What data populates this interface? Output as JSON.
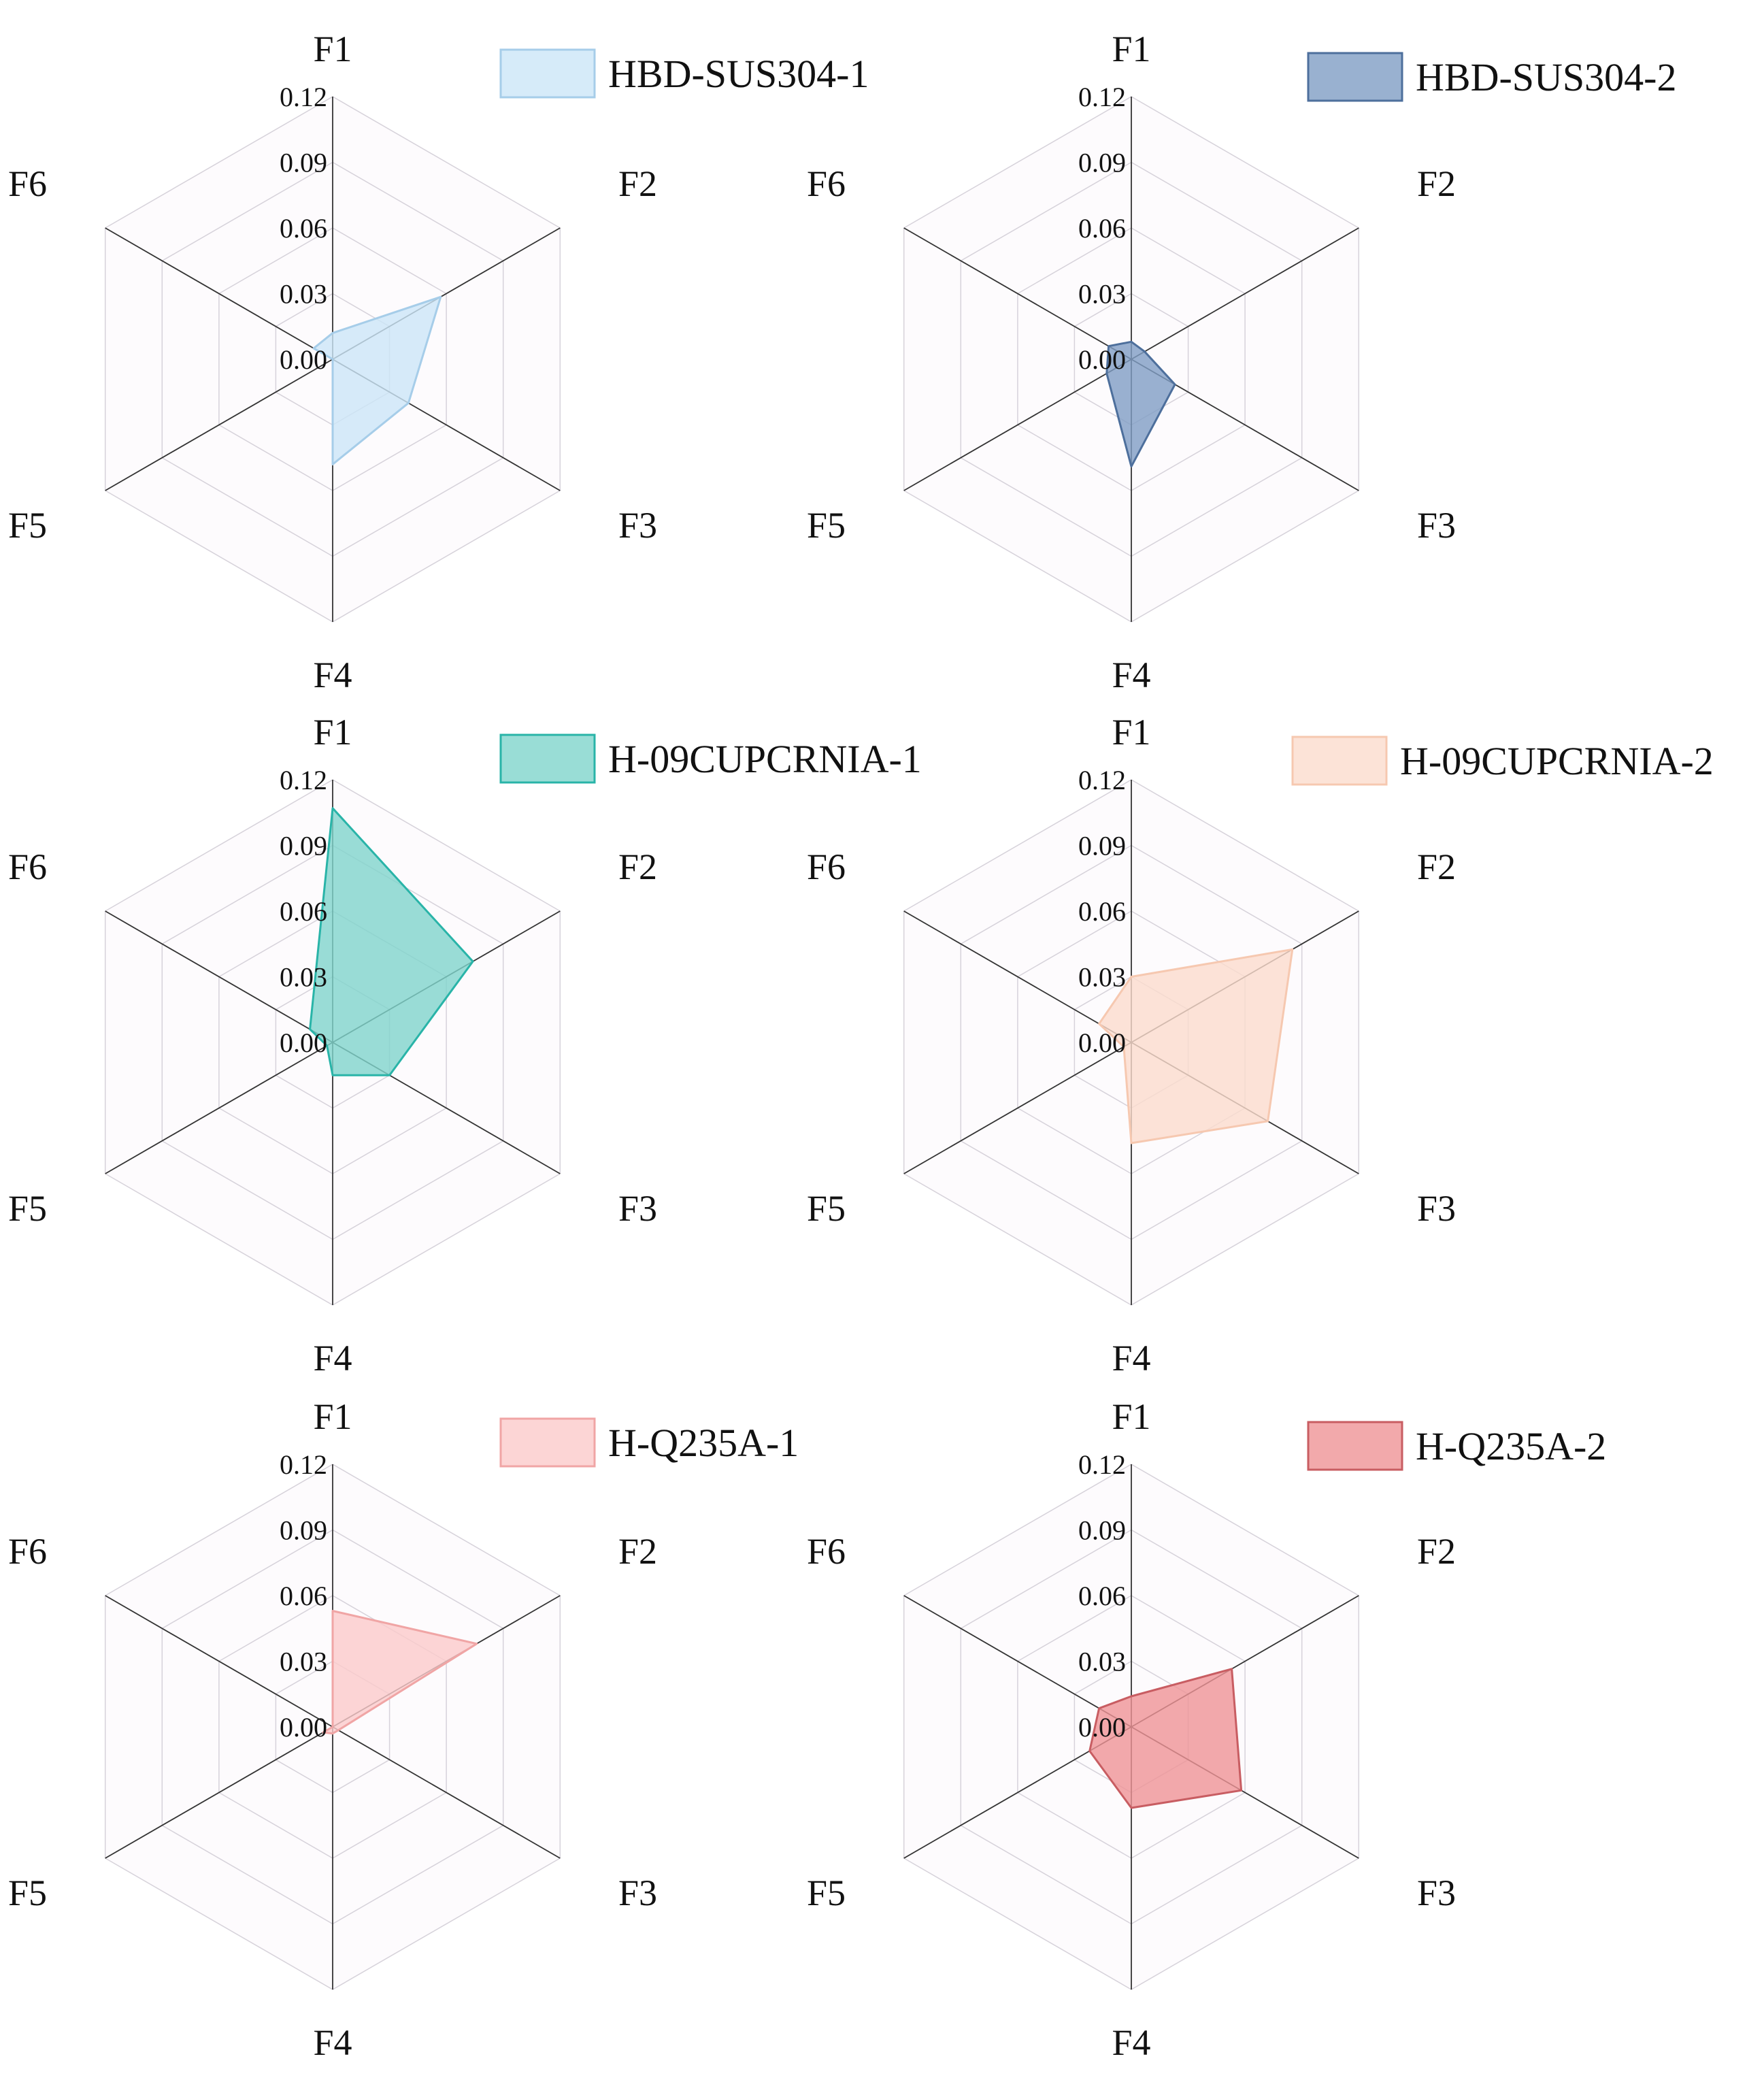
{
  "axes": [
    "F1",
    "F2",
    "F3",
    "F4",
    "F5",
    "F6"
  ],
  "tick_labels": [
    "0.00",
    "0.03",
    "0.06",
    "0.09",
    "0.12"
  ],
  "chart_data": [
    {
      "type": "radar",
      "legend": "HBD-SUS304-1",
      "fill_color": "#cce6f8",
      "stroke_color": "#a6cde9",
      "categories": [
        "F1",
        "F2",
        "F3",
        "F4",
        "F5",
        "F6"
      ],
      "values": [
        0.012,
        0.057,
        0.04,
        0.048,
        0.0,
        0.01
      ],
      "rlim": [
        0,
        0.12
      ]
    },
    {
      "type": "radar",
      "legend": "HBD-SUS304-2",
      "fill_color": "#7f9dc4",
      "stroke_color": "#4d6f9c",
      "categories": [
        "F1",
        "F2",
        "F3",
        "F4",
        "F5",
        "F6"
      ],
      "values": [
        0.008,
        0.007,
        0.023,
        0.049,
        0.013,
        0.012
      ],
      "rlim": [
        0,
        0.12
      ]
    },
    {
      "type": "radar",
      "legend": "H-09CUPCRNIA-1",
      "fill_color": "#7fd4cc",
      "stroke_color": "#29b4a8",
      "categories": [
        "F1",
        "F2",
        "F3",
        "F4",
        "F5",
        "F6"
      ],
      "values": [
        0.107,
        0.074,
        0.03,
        0.015,
        0.003,
        0.012
      ],
      "rlim": [
        0,
        0.12
      ]
    },
    {
      "type": "radar",
      "legend": "H-09CUPCRNIA-2",
      "fill_color": "#fbdccd",
      "stroke_color": "#f6c8b0",
      "categories": [
        "F1",
        "F2",
        "F3",
        "F4",
        "F5",
        "F6"
      ],
      "values": [
        0.03,
        0.085,
        0.072,
        0.046,
        0.004,
        0.017
      ],
      "rlim": [
        0,
        0.12
      ]
    },
    {
      "type": "radar",
      "legend": "H-Q235A-1",
      "fill_color": "#fbcaca",
      "stroke_color": "#f0a5a5",
      "categories": [
        "F1",
        "F2",
        "F3",
        "F4",
        "F5",
        "F6"
      ],
      "values": [
        0.053,
        0.076,
        0.003,
        0.003,
        0.005,
        0.0
      ],
      "rlim": [
        0,
        0.12
      ]
    },
    {
      "type": "radar",
      "legend": "H-Q235A-2",
      "fill_color": "#ef9396",
      "stroke_color": "#c85d62",
      "categories": [
        "F1",
        "F2",
        "F3",
        "F4",
        "F5",
        "F6"
      ],
      "values": [
        0.014,
        0.053,
        0.058,
        0.037,
        0.022,
        0.017
      ],
      "rlim": [
        0,
        0.12
      ]
    }
  ]
}
